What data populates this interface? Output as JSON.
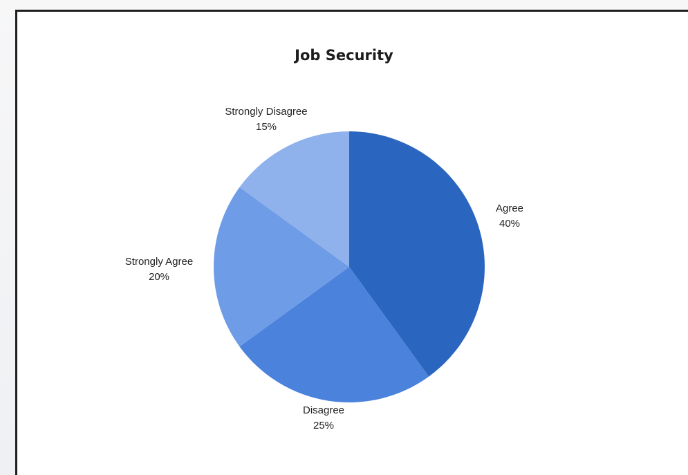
{
  "chart_data": {
    "type": "pie",
    "title": "Job Security",
    "slices": [
      {
        "label": "Agree",
        "value": 40,
        "percent_label": "40%",
        "color": "#2a66bf"
      },
      {
        "label": "Disagree",
        "value": 25,
        "percent_label": "25%",
        "color": "#4a82dc"
      },
      {
        "label": "Strongly Agree",
        "value": 20,
        "percent_label": "20%",
        "color": "#6f9ce6"
      },
      {
        "label": "Strongly Disagree",
        "value": 15,
        "percent_label": "15%",
        "color": "#8fb1ec"
      }
    ]
  }
}
